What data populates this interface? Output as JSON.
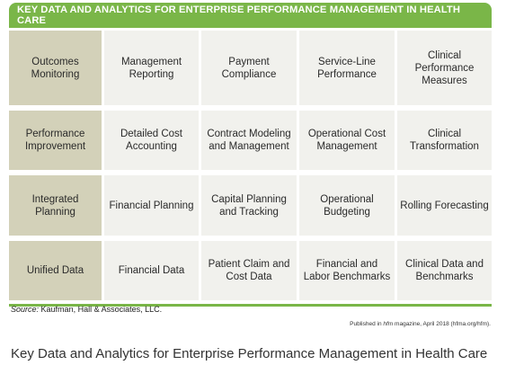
{
  "figure": {
    "title": "KEY DATA AND ANALYTICS FOR ENTERPRISE PERFORMANCE MANAGEMENT IN HEALTH CARE",
    "colors": {
      "banner": "#7ab648",
      "row_header": "#d3d1b9",
      "cell": "#f1f1ed"
    },
    "rows": [
      {
        "header": "Outcomes Monitoring",
        "cells": [
          "Management Reporting",
          "Payment Compliance",
          "Service-Line Performance",
          "Clinical Performance Measures"
        ]
      },
      {
        "header": "Performance Improvement",
        "cells": [
          "Detailed Cost Accounting",
          "Contract Modeling and Management",
          "Operational Cost Management",
          "Clinical Transformation"
        ]
      },
      {
        "header": "Integrated Planning",
        "cells": [
          "Financial Planning",
          "Capital Planning and Tracking",
          "Operational Budgeting",
          "Rolling Forecasting"
        ]
      },
      {
        "header": "Unified Data",
        "cells": [
          "Financial Data",
          "Patient Claim and Cost Data",
          "Financial and Labor Benchmarks",
          "Clinical Data and Benchmarks"
        ]
      }
    ],
    "source_label": "Source:",
    "source_text": "Kaufman, Hall & Associates, LLC.",
    "published_prefix": "Published in",
    "published_magazine": "hfm",
    "published_suffix": "magazine, April 2018 (hfma.org/hfm)."
  },
  "caption": "Key Data and Analytics for Enterprise Performance Management in Health Care"
}
